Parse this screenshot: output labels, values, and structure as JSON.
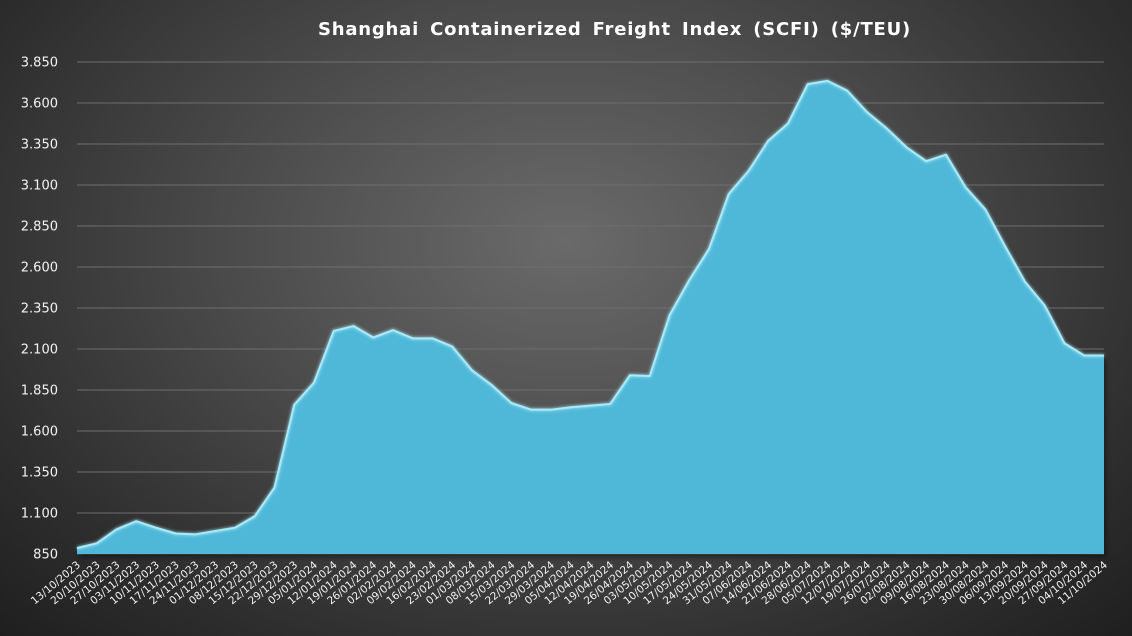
{
  "chart_data": {
    "type": "area",
    "title": "Shanghai Containerized Freight Index (SCFI) ($/TEU)",
    "xlabel": "",
    "ylabel": "",
    "ylim": [
      850,
      3850
    ],
    "yticks": [
      850,
      1100,
      1350,
      1600,
      1850,
      2100,
      2350,
      2600,
      2850,
      3100,
      3350,
      3600,
      3850
    ],
    "ytick_labels": [
      "850",
      "1.100",
      "1.350",
      "1.600",
      "1.850",
      "2.100",
      "2.350",
      "2.600",
      "2.850",
      "3.100",
      "3.350",
      "3.600",
      "3.850"
    ],
    "grid": true,
    "legend": "none",
    "colors": {
      "fill": "#4fb8d8",
      "line": "#a8eaf8",
      "background_center": "#6a6a6a",
      "background_edge": "#1f1f1f",
      "grid": "#6e6e6e",
      "text": "#ffffff"
    },
    "x": [
      "13/10/2023",
      "20/10/2023",
      "27/10/2023",
      "03/11/2023",
      "10/11/2023",
      "17/11/2023",
      "24/11/2023",
      "01/12/2023",
      "08/12/2023",
      "15/12/2023",
      "22/12/2023",
      "29/12/2023",
      "05/01/2024",
      "12/01/2024",
      "19/01/2024",
      "26/01/2024",
      "02/02/2024",
      "09/02/2024",
      "16/02/2024",
      "23/02/2024",
      "01/03/2024",
      "08/03/2024",
      "15/03/2024",
      "22/03/2024",
      "29/03/2024",
      "05/04/2024",
      "12/04/2024",
      "19/04/2024",
      "26/04/2024",
      "03/05/2024",
      "10/05/2024",
      "17/05/2024",
      "24/05/2024",
      "31/05/2024",
      "07/06/2024",
      "14/06/2024",
      "21/06/2024",
      "28/06/2024",
      "05/07/2024",
      "12/07/2024",
      "19/07/2024",
      "26/07/2024",
      "02/08/2024",
      "09/08/2024",
      "16/08/2024",
      "23/08/2024",
      "30/08/2024",
      "06/09/2024",
      "13/09/2024",
      "20/09/2024",
      "27/09/2024",
      "04/10/2024",
      "11/10/2024"
    ],
    "values": [
      886,
      915,
      1000,
      1050,
      1010,
      975,
      970,
      990,
      1010,
      1080,
      1255,
      1760,
      1895,
      2210,
      2240,
      2170,
      2215,
      2165,
      2165,
      2115,
      1970,
      1880,
      1770,
      1730,
      1730,
      1745,
      1755,
      1765,
      1940,
      1935,
      2305,
      2520,
      2710,
      3045,
      3185,
      3370,
      3475,
      3715,
      3735,
      3675,
      3545,
      3445,
      3330,
      3245,
      3285,
      3085,
      2950,
      2725,
      2510,
      2365,
      2135,
      2060,
      2060
    ]
  }
}
